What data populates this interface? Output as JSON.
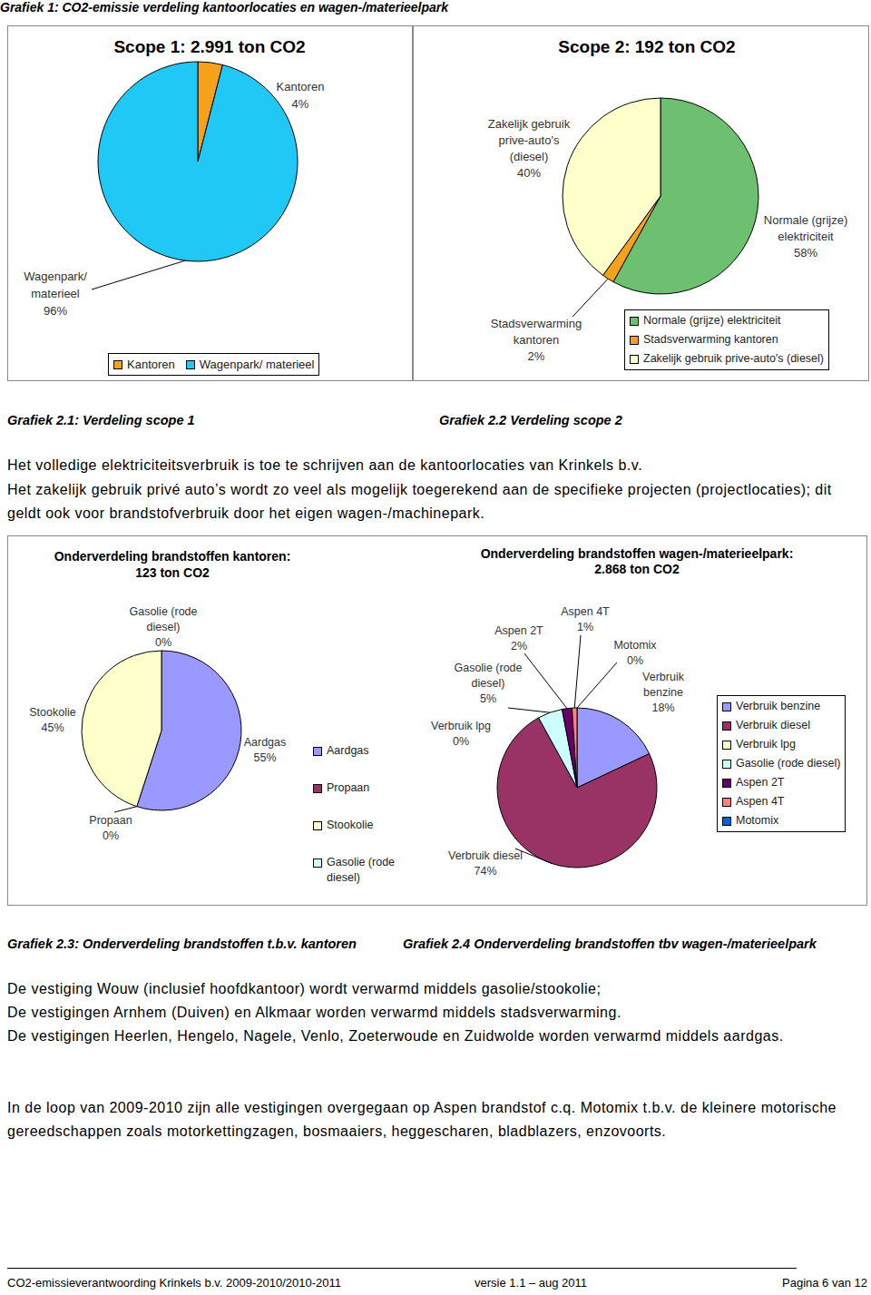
{
  "title": "Grafiek 1: CO2-emissie verdeling kantoorlocaties en wagen-/materieelpark",
  "chart_data": [
    {
      "type": "pie",
      "title": "Scope 1: 2.991 ton CO2",
      "categories": [
        "Kantoren",
        "Wagenpark/ materieel"
      ],
      "values": [
        4,
        96
      ],
      "value_labels": [
        "4%",
        "96%"
      ],
      "colors": [
        "#f7a11a",
        "#1fc8f5"
      ],
      "data_labels": true,
      "legend": "bottom"
    },
    {
      "type": "pie",
      "title": "Scope 2: 192 ton CO2",
      "categories": [
        "Normale (grijze) elektriciteit",
        "Stadsverwarming kantoren",
        "Zakelijk gebruik prive-auto's (diesel)"
      ],
      "values": [
        58,
        2,
        40
      ],
      "value_labels": [
        "58%",
        "2%",
        "40%"
      ],
      "colors": [
        "#6cc070",
        "#f7a11a",
        "#ffffcc"
      ],
      "data_labels": true,
      "legend": "bottom right"
    },
    {
      "type": "pie",
      "title": "Onderverdeling brandstoffen kantoren:",
      "subtitle": "123 ton CO2",
      "categories": [
        "Aardgas",
        "Propaan",
        "Stookolie",
        "Gasolie (rode diesel)"
      ],
      "values": [
        55,
        0,
        45,
        0
      ],
      "value_labels": [
        "55%",
        "0%",
        "45%",
        "0%"
      ],
      "colors": [
        "#9999ff",
        "#993366",
        "#ffffcc",
        "#ccffff"
      ],
      "data_labels": true,
      "legend": "right"
    },
    {
      "type": "pie",
      "title": "Onderverdeling brandstoffen wagen-/materieelpark:",
      "subtitle": "2.868 ton CO2",
      "categories": [
        "Verbruik benzine",
        "Verbruik diesel",
        "Verbruik lpg",
        "Gasolie (rode diesel)",
        "Aspen 2T",
        "Aspen 4T",
        "Motomix"
      ],
      "values": [
        18,
        74,
        0,
        5,
        2,
        1,
        0
      ],
      "value_labels": [
        "18%",
        "74%",
        "0%",
        "5%",
        "2%",
        "1%",
        "0%"
      ],
      "colors": [
        "#9999ff",
        "#993366",
        "#ffffcc",
        "#ccffff",
        "#660066",
        "#ff8080",
        "#0066cc"
      ],
      "data_labels": true,
      "legend": "right"
    }
  ],
  "captions": [
    "Grafiek 2.1: Verdeling scope 1",
    "Grafiek 2.2 Verdeling scope 2",
    "Grafiek 2.3: Onderverdeling brandstoffen t.b.v. kantoren",
    "Grafiek 2.4 Onderverdeling brandstoffen tbv wagen-/materieelpark"
  ],
  "paragraphs": [
    [
      "Het volledige elektriciteitsverbruik is toe te schrijven aan de kantoorlocaties van Krinkels b.v."
    ],
    [
      "Het zakelijk gebruik privé auto’s wordt zo veel als mogelijk toegerekend aan de specifieke projecten (projectlocaties); dit geldt ook voor brandstofverbruik door het eigen wagen-/machinepark."
    ],
    [
      "De vestiging Wouw (inclusief hoofdkantoor) wordt verwarmd middels gasolie/stookolie;",
      "De vestigingen Arnhem (Duiven) en Alkmaar worden verwarmd middels stadsverwarming.",
      "De vestigingen Heerlen, Hengelo, Nagele, Venlo, Zoeterwoude en Zuidwolde worden verwarmd middels aardgas."
    ],
    [
      "In de loop van 2009-2010 zijn alle vestigingen overgegaan op Aspen brandstof c.q. Motomix t.b.v. de kleinere motorische gereedschappen zoals motorkettingzagen, bosmaaiers, heggescharen, bladblazers, enzovoorts."
    ]
  ],
  "footer": {
    "left": "CO2-emissieverantwoording Krinkels b.v. 2009-2010/2010-2011",
    "center": "versie 1.1 – aug 2011",
    "right": "Pagina 6 van 12"
  }
}
